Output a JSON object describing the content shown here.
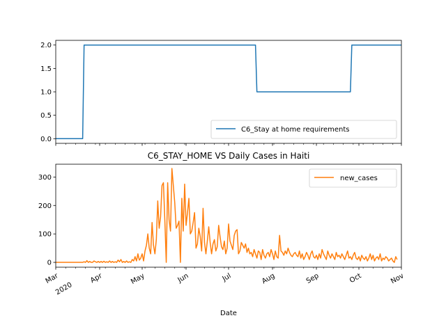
{
  "chart_data": [
    {
      "type": "line",
      "title": "",
      "xlabel": "",
      "ylabel": "",
      "ylim": [
        -0.1,
        2.1
      ],
      "yticks": [
        0.0,
        0.5,
        1.0,
        1.5,
        2.0
      ],
      "ytick_labels": [
        "0.0",
        "0.5",
        "1.0",
        "1.5",
        "2.0"
      ],
      "legend": {
        "placement": "lower-right",
        "entries": [
          "C6_Stay at home requirements"
        ]
      },
      "series": [
        {
          "name": "C6_Stay at home requirements",
          "color": "#1f77b4",
          "step_points": [
            {
              "date": "2020-03-01",
              "value": 0
            },
            {
              "date": "2020-03-20",
              "value": 0
            },
            {
              "date": "2020-03-21",
              "value": 2
            },
            {
              "date": "2020-07-20",
              "value": 2
            },
            {
              "date": "2020-07-21",
              "value": 1
            },
            {
              "date": "2020-09-25",
              "value": 1
            },
            {
              "date": "2020-09-26",
              "value": 2
            },
            {
              "date": "2020-10-31",
              "value": 2
            }
          ]
        }
      ]
    },
    {
      "type": "line",
      "title": "C6_STAY_HOME VS Daily Cases in Haiti",
      "xlabel": "Date",
      "ylabel": "",
      "ylim": [
        -17,
        345
      ],
      "yticks": [
        0,
        100,
        200,
        300
      ],
      "ytick_labels": [
        "0",
        "100",
        "200",
        "300"
      ],
      "legend": {
        "placement": "upper-right",
        "entries": [
          "new_cases"
        ]
      },
      "series": [
        {
          "name": "new_cases",
          "color": "#ff7f0e",
          "start_date": "2020-03-01",
          "values": [
            0,
            0,
            0,
            0,
            0,
            0,
            0,
            0,
            0,
            0,
            0,
            0,
            0,
            0,
            0,
            0,
            0,
            0,
            0,
            0,
            2,
            0,
            6,
            0,
            3,
            0,
            0,
            5,
            2,
            0,
            3,
            0,
            3,
            0,
            4,
            0,
            2,
            0,
            5,
            0,
            3,
            0,
            2,
            0,
            8,
            2,
            10,
            0,
            3,
            0,
            5,
            0,
            2,
            0,
            10,
            5,
            20,
            5,
            30,
            8,
            15,
            30,
            5,
            40,
            60,
            100,
            50,
            30,
            140,
            60,
            30,
            80,
            216,
            120,
            160,
            270,
            280,
            150,
            0,
            280,
            150,
            110,
            330,
            270,
            210,
            120,
            130,
            145,
            0,
            225,
            110,
            275,
            130,
            175,
            225,
            100,
            110,
            140,
            175,
            50,
            65,
            120,
            90,
            40,
            190,
            70,
            30,
            75,
            125,
            70,
            30,
            65,
            80,
            40,
            55,
            130,
            90,
            55,
            45,
            75,
            30,
            50,
            135,
            75,
            60,
            45,
            95,
            110,
            115,
            30,
            40,
            70,
            60,
            50,
            65,
            35,
            50,
            30,
            35,
            20,
            45,
            30,
            15,
            40,
            35,
            10,
            45,
            25,
            15,
            30,
            35,
            20,
            45,
            30,
            10,
            40,
            20,
            15,
            95,
            40,
            35,
            25,
            40,
            30,
            50,
            35,
            25,
            20,
            30,
            35,
            25,
            20,
            40,
            15,
            30,
            10,
            20,
            35,
            25,
            10,
            30,
            40,
            20,
            15,
            25,
            10,
            30,
            15,
            45,
            30,
            20,
            10,
            40,
            25,
            15,
            30,
            20,
            10,
            35,
            20,
            25,
            15,
            30,
            20,
            10,
            25,
            40,
            15,
            20,
            10,
            25,
            35,
            15,
            10,
            20,
            5,
            25,
            15,
            10,
            20,
            5,
            15,
            30,
            10,
            25,
            5,
            15,
            20,
            10,
            30,
            5,
            15,
            10,
            20,
            15,
            5,
            10,
            15,
            5,
            0,
            20,
            10
          ]
        }
      ]
    }
  ],
  "x_axis": {
    "label": "Date",
    "start_date": "2020-03-01",
    "end_date": "2020-10-31",
    "ticks": [
      {
        "date": "2020-03-01",
        "label": "Mar",
        "sublabel": "2020"
      },
      {
        "date": "2020-04-01",
        "label": "Apr"
      },
      {
        "date": "2020-05-01",
        "label": "May"
      },
      {
        "date": "2020-06-01",
        "label": "Jun"
      },
      {
        "date": "2020-07-01",
        "label": "Jul"
      },
      {
        "date": "2020-08-01",
        "label": "Aug"
      },
      {
        "date": "2020-09-01",
        "label": "Sep"
      },
      {
        "date": "2020-10-01",
        "label": "Oct"
      },
      {
        "date": "2020-11-01",
        "label": "Nov"
      }
    ]
  }
}
